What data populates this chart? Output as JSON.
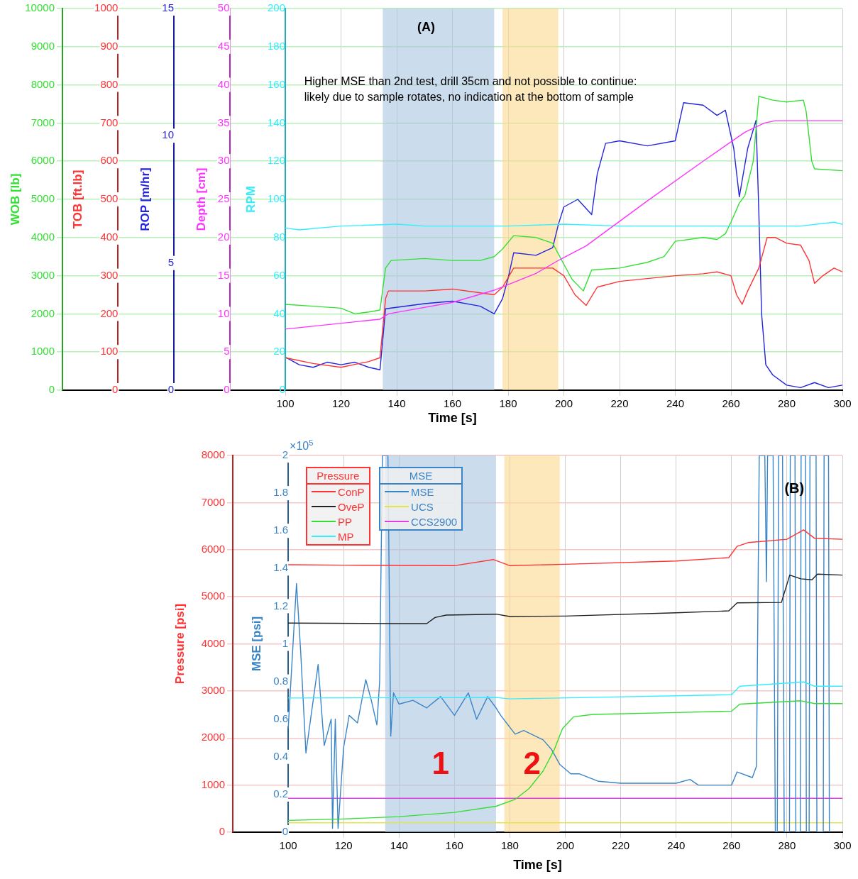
{
  "chart_data": [
    {
      "type": "line",
      "annotations": [
        "(A)",
        "Higher MSE than 2nd test, drill 35cm and not possible to continue:\nlikely due to sample rotates, no indication at the bottom of sample"
      ],
      "xlabel": "Time [s]",
      "xlim": [
        20,
        300
      ],
      "xticks": [
        100,
        120,
        140,
        160,
        180,
        200,
        220,
        240,
        260,
        280,
        300
      ],
      "ylabel": "WOB [lb]",
      "ylim": [
        0,
        10000
      ],
      "yticks": [
        0,
        1000,
        2000,
        3000,
        4000,
        5000,
        6000,
        7000,
        8000,
        9000,
        10000
      ],
      "y2label": "TOB [ft.lb]",
      "y2lim": [
        0,
        1000
      ],
      "y2ticks": [
        0,
        100,
        200,
        300,
        400,
        500,
        600,
        700,
        800,
        900,
        1000
      ],
      "y3label": "ROP [m/hr]",
      "y3lim": [
        0,
        15
      ],
      "y3ticks": [
        0,
        5,
        10,
        15
      ],
      "grid": true,
      "bands": [
        {
          "axis": "x",
          "from": 135,
          "to": 175,
          "color": "#a9c4e0"
        },
        {
          "axis": "x",
          "from": 178,
          "to": 198,
          "color": "#fbd98e"
        }
      ],
      "series": [
        {
          "color": "#33e033",
          "axis": "y",
          "x": [
            100,
            110,
            120,
            125,
            130,
            134,
            136,
            138,
            150,
            160,
            170,
            175,
            178,
            182,
            190,
            196,
            200,
            203,
            207,
            210,
            220,
            230,
            236,
            240,
            250,
            255,
            258,
            260,
            263,
            265,
            266,
            268,
            270,
            275,
            280,
            286,
            287,
            289,
            290,
            300
          ],
          "values": [
            2250,
            2200,
            2150,
            2000,
            2050,
            2100,
            3200,
            3400,
            3450,
            3400,
            3400,
            3500,
            3700,
            4050,
            4000,
            3850,
            3300,
            2900,
            2600,
            3150,
            3200,
            3350,
            3500,
            3900,
            4000,
            3950,
            4100,
            4400,
            4900,
            5100,
            5400,
            6000,
            7700,
            7600,
            7550,
            7600,
            7300,
            6000,
            5800,
            5750
          ]
        },
        {
          "color": "#ff3333",
          "axis": "y2",
          "x": [
            100,
            110,
            120,
            130,
            134,
            136,
            137,
            150,
            160,
            170,
            175,
            178,
            182,
            190,
            196,
            200,
            204,
            208,
            212,
            220,
            240,
            250,
            255,
            260,
            262,
            264,
            266,
            270,
            273,
            276,
            280,
            285,
            288,
            290,
            293,
            297,
            300
          ],
          "values": [
            85,
            70,
            60,
            75,
            85,
            240,
            260,
            260,
            265,
            255,
            250,
            270,
            320,
            320,
            320,
            300,
            250,
            222,
            270,
            285,
            300,
            305,
            310,
            300,
            250,
            225,
            260,
            320,
            400,
            400,
            385,
            380,
            340,
            280,
            300,
            320,
            310
          ]
        },
        {
          "color": "#2424dd",
          "axis": "y3",
          "x": [
            100,
            105,
            110,
            115,
            120,
            125,
            130,
            134,
            136,
            150,
            160,
            170,
            175,
            178,
            180,
            182,
            190,
            196,
            198,
            200,
            205,
            210,
            212,
            215,
            220,
            230,
            240,
            243,
            250,
            255,
            258,
            261,
            263,
            266,
            269,
            270,
            271,
            272.5,
            275,
            280,
            285,
            290,
            295,
            300
          ],
          "values": [
            1.3,
            1.0,
            0.9,
            1.1,
            1.0,
            1.1,
            0.9,
            0.8,
            3.2,
            3.4,
            3.5,
            3.3,
            3.0,
            3.6,
            4.4,
            5.4,
            5.3,
            5.6,
            6.5,
            7.2,
            7.5,
            6.9,
            8.5,
            9.7,
            9.8,
            9.6,
            9.8,
            11.3,
            11.2,
            10.8,
            11.0,
            9.5,
            7.6,
            9.5,
            10.6,
            7.0,
            3.0,
            1.0,
            0.6,
            0.2,
            0.1,
            0.3,
            0.1,
            0.2
          ]
        }
      ]
    },
    {
      "type": "line",
      "tick_labels": "y",
      "xlim": [
        20,
        300
      ],
      "ylabel": "Depth [cm]",
      "ylim": [
        0,
        50
      ],
      "yticks": [
        0,
        5,
        10,
        15,
        20,
        25,
        30,
        35,
        40,
        45,
        50
      ],
      "y2label": "RPM",
      "y2lim": [
        0,
        200
      ],
      "y2ticks": [
        0,
        20,
        40,
        60,
        80,
        100,
        120,
        140,
        160,
        180,
        200
      ],
      "series": [
        {
          "color": "#ff33ff",
          "axis": "y",
          "x": [
            100,
            134,
            137,
            160,
            175,
            190,
            198.5,
            208,
            230,
            250,
            265,
            272,
            276,
            300
          ],
          "values": [
            8.0,
            9.3,
            10.0,
            11.5,
            13.1,
            15.3,
            17.1,
            18.9,
            24.8,
            30.0,
            33.8,
            35.0,
            35.3,
            35.3
          ]
        },
        {
          "color": "#33eeff",
          "axis": "y2",
          "x": [
            100,
            105,
            120,
            140,
            150,
            180,
            200,
            220,
            240,
            250,
            270,
            285,
            297,
            300
          ],
          "values": [
            85,
            84,
            86,
            87,
            86,
            86,
            87,
            86,
            86,
            86,
            86,
            86,
            88,
            87
          ]
        }
      ]
    },
    {
      "type": "line",
      "annotations": [
        "(B)",
        "MSE",
        "×10$^{5}$"
      ],
      "xlabel": "Time [s]",
      "xlim": [
        80,
        300
      ],
      "xticks": [
        100,
        120,
        140,
        160,
        180,
        200,
        220,
        240,
        260,
        280,
        300
      ],
      "ylabel": "Pressure [psi]",
      "ylim": [
        0,
        8000
      ],
      "yticks": [
        0,
        1000,
        2000,
        3000,
        4000,
        5000,
        6000,
        7000,
        8000
      ],
      "y2label": "MSE [psi]",
      "y2lim": [
        0,
        2
      ],
      "y2ticks": [
        0,
        0.2,
        0.4,
        0.6,
        0.8,
        1,
        1.2,
        1.4,
        1.6,
        1.8,
        2
      ],
      "grid": true,
      "legend": "top left",
      "legend_title": "Pressure",
      "bands": [
        {
          "axis": "x",
          "from": 135,
          "to": 175,
          "color": "#a9c4e0",
          "label": "1"
        },
        {
          "axis": "x",
          "from": 178,
          "to": 198,
          "color": "#fbd98e",
          "label": "2"
        }
      ],
      "series": [
        {
          "name": "ConP",
          "color": "#ff3333",
          "axis": "y",
          "x": [
            100,
            120,
            160,
            174,
            180,
            200,
            240,
            259,
            262,
            266,
            280,
            286,
            290,
            300
          ],
          "values": [
            5680,
            5670,
            5660,
            5790,
            5660,
            5690,
            5760,
            5830,
            6070,
            6150,
            6220,
            6420,
            6240,
            6220
          ]
        },
        {
          "name": "OveP",
          "color": "#222222",
          "axis": "y",
          "x": [
            100,
            140,
            150,
            153,
            157,
            175,
            180,
            200,
            240,
            259,
            262,
            278,
            281,
            285,
            289,
            291,
            300
          ],
          "values": [
            4440,
            4430,
            4430,
            4560,
            4610,
            4630,
            4580,
            4590,
            4660,
            4700,
            4870,
            4880,
            5460,
            5380,
            5360,
            5480,
            5460
          ]
        },
        {
          "name": "PP",
          "color": "#33dd33",
          "axis": "y",
          "x": [
            100,
            120,
            140,
            160,
            175,
            182,
            187,
            192,
            196,
            199,
            203,
            210,
            240,
            260,
            263,
            285,
            290,
            300
          ],
          "values": [
            250,
            280,
            330,
            420,
            550,
            700,
            930,
            1300,
            1750,
            2200,
            2450,
            2500,
            2540,
            2570,
            2720,
            2790,
            2730,
            2730
          ]
        },
        {
          "name": "MP",
          "color": "#33eeff",
          "axis": "y",
          "x": [
            100,
            175,
            180,
            260,
            263,
            286,
            290,
            300
          ],
          "values": [
            2850,
            2860,
            2830,
            2920,
            3100,
            3190,
            3100,
            3100
          ]
        },
        {
          "name": "MSE",
          "color": "#3a85c8",
          "axis": "y2",
          "x": [
            100,
            103,
            104.5,
            106.4,
            110.8,
            113,
            115.5,
            116,
            117,
            118,
            120,
            122,
            125,
            128,
            130,
            132,
            133,
            134,
            136,
            137,
            138,
            140,
            145,
            150,
            155,
            160,
            165,
            168,
            172,
            175,
            176.7,
            181.9,
            185,
            192,
            195,
            198,
            202,
            205,
            212,
            220,
            230,
            240,
            245,
            248,
            260,
            262,
            267.5,
            269,
            270,
            272,
            272.6,
            273,
            275,
            275.8,
            276.5,
            277,
            278.4,
            279,
            280.9,
            281.2,
            282.9,
            283.2,
            284.8,
            285.1,
            286.7,
            287,
            288,
            288.3,
            290.5,
            290.8,
            293.1,
            293.4,
            295,
            295.3
          ],
          "values": [
            0.55,
            1.32,
            0.96,
            0.42,
            0.89,
            0.46,
            0.6,
            0.02,
            0.6,
            0.02,
            0.45,
            0.62,
            0.58,
            0.81,
            0.7,
            0.57,
            0.8,
            2,
            2,
            0.51,
            0.74,
            0.68,
            0.7,
            0.66,
            0.72,
            0.62,
            0.74,
            0.6,
            0.72,
            0.66,
            0.62,
            0.52,
            0.54,
            0.49,
            0.44,
            0.36,
            0.31,
            0.31,
            0.27,
            0.26,
            0.26,
            0.26,
            0.28,
            0.25,
            0.25,
            0.32,
            0.29,
            0.35,
            2,
            2,
            1.33,
            2,
            2,
            0,
            0,
            2,
            2,
            0,
            0,
            2,
            2,
            0,
            0,
            2,
            2,
            0,
            0,
            2,
            2,
            0,
            0,
            2,
            2,
            0
          ]
        },
        {
          "name": "UCS",
          "color": "#e5e54a",
          "axis": "y2",
          "x": [
            100,
            300
          ],
          "values": [
            0.05,
            0.05
          ]
        },
        {
          "name": "CCS2900",
          "color": "#e040e0",
          "axis": "y2",
          "x": [
            100,
            300
          ],
          "values": [
            0.18,
            0.18
          ]
        }
      ]
    }
  ]
}
